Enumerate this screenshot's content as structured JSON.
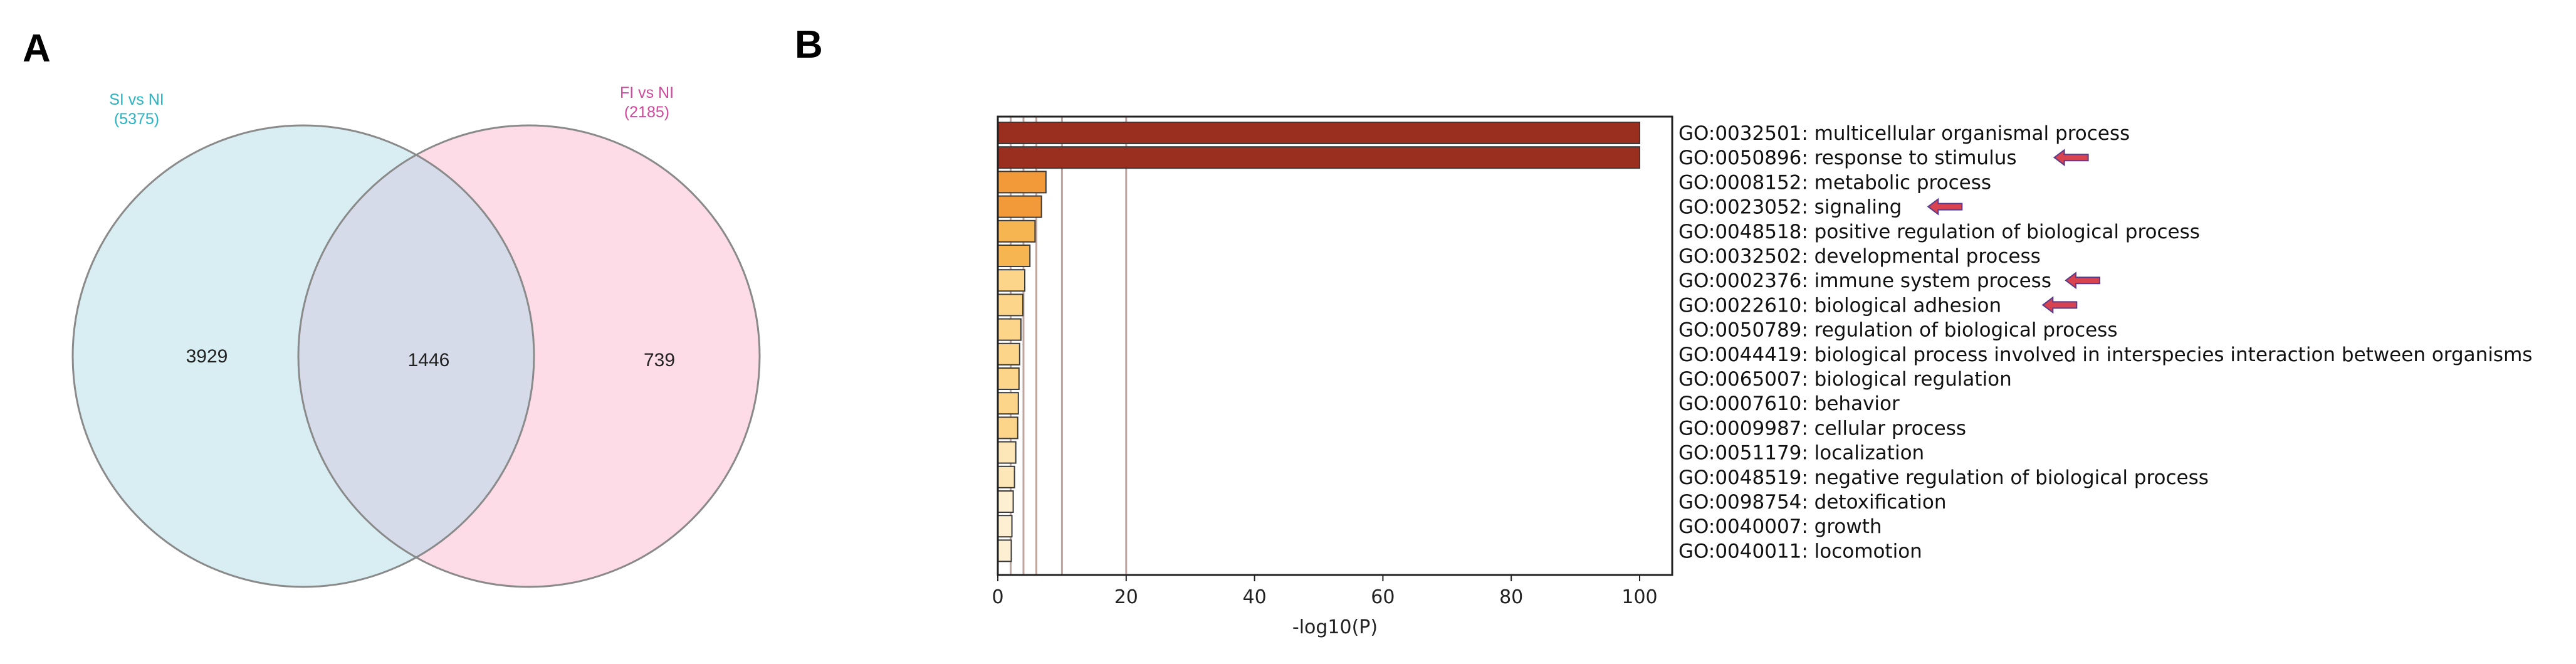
{
  "panels": {
    "a": {
      "letter": "A"
    },
    "b": {
      "letter": "B"
    }
  },
  "chart_data": [
    {
      "type": "venn",
      "sets": [
        {
          "name": "SI vs NI",
          "total": "(5375)",
          "color": "#2ab3c1",
          "fill": "#d8eef3"
        },
        {
          "name": "FI vs NI",
          "total": "(2185)",
          "color": "#d04a9c",
          "fill": "#fddbe7"
        }
      ],
      "regions": {
        "left_only": "3929",
        "overlap": "1446",
        "right_only": "739"
      },
      "overlap_fill": "#d6dbe9",
      "outline_color": "#8a8a8a"
    },
    {
      "type": "bar",
      "orientation": "horizontal",
      "xlabel": "-log10(P)",
      "xlim": [
        0,
        105
      ],
      "xticks": [
        0,
        20,
        40,
        60,
        80,
        100
      ],
      "reference_lines": [
        2,
        4,
        6,
        10,
        20
      ],
      "categories": [
        "GO:0032501: multicellular organismal process",
        "GO:0050896: response to stimulus",
        "GO:0008152: metabolic process",
        "GO:0023052: signaling",
        "GO:0048518: positive regulation of biological process",
        "GO:0032502: developmental process",
        "GO:0002376: immune system process",
        "GO:0022610: biological adhesion",
        "GO:0050789: regulation of biological process",
        "GO:0044419: biological process involved in interspecies interaction between organisms",
        "GO:0065007: biological regulation",
        "GO:0007610: behavior",
        "GO:0009987: cellular process",
        "GO:0051179: localization",
        "GO:0048519: negative regulation of biological process",
        "GO:0098754: detoxification",
        "GO:0040007: growth",
        "GO:0040011: locomotion"
      ],
      "values": [
        100,
        100,
        7.5,
        6.8,
        5.8,
        5.0,
        4.2,
        3.9,
        3.6,
        3.4,
        3.3,
        3.2,
        3.1,
        2.8,
        2.6,
        2.4,
        2.2,
        2.1
      ],
      "colors": [
        "#9b2f1f",
        "#9b2f1f",
        "#f29a3a",
        "#f29a3a",
        "#f7b552",
        "#f7b552",
        "#fcd58a",
        "#fcd58a",
        "#fcd58a",
        "#fcd58a",
        "#fcd58a",
        "#fcd58a",
        "#fcd58a",
        "#fde6b8",
        "#fde6b8",
        "#fdf0d2",
        "#fdf0d2",
        "#fdf0d2"
      ],
      "highlighted": [
        "GO:0050896: response to stimulus",
        "GO:0023052: signaling",
        "GO:0002376: immune system process",
        "GO:0022610: biological adhesion"
      ],
      "arrow_color": "#d9434f"
    }
  ]
}
